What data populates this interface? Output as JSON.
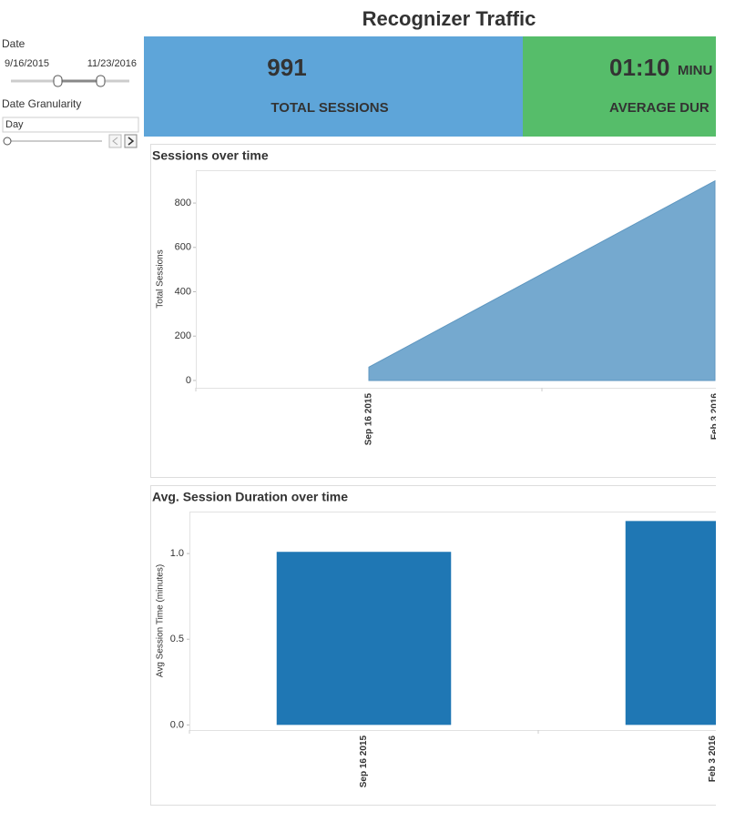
{
  "header": {
    "title": "Recognizer Traffic"
  },
  "filters": {
    "date_label": "Date",
    "date_start": "9/16/2015",
    "date_end": "11/23/2016",
    "granularity_label": "Date Granularity",
    "granularity_value": "Day"
  },
  "kpis": [
    {
      "value": "991",
      "label": "TOTAL SESSIONS",
      "color": "#5ea5d9"
    },
    {
      "value": "01:10",
      "unit": "MINU",
      "label": "AVERAGE DUR",
      "color": "#56bd6a"
    }
  ],
  "chart_data": [
    {
      "type": "area",
      "title": "Sessions over time",
      "y_label": "Total Sessions",
      "categories": [
        "Sep 16 2015",
        "Feb 3 2016"
      ],
      "values": [
        60,
        900
      ],
      "color": "#75a9cf",
      "ylim": [
        -33,
        948
      ],
      "yticks": [
        0,
        200,
        400,
        600,
        800
      ]
    },
    {
      "type": "bar",
      "title": "Avg. Session Duration over time",
      "y_label": "Avg Session Time (minutes)",
      "categories": [
        "Sep 16 2015",
        "Feb 3 2016"
      ],
      "values": [
        1.01,
        1.19
      ],
      "color": "#1f77b4",
      "ylim": [
        -0.03,
        1.245
      ],
      "yticks": [
        {
          "value": 0,
          "label": "0.0"
        },
        {
          "value": 0.5,
          "label": "0.5"
        },
        {
          "value": 1,
          "label": "1.0"
        }
      ]
    }
  ]
}
